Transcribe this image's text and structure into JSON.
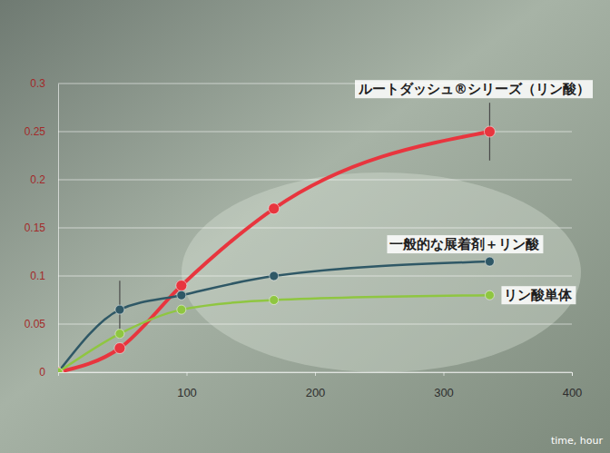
{
  "chart_data": {
    "type": "line",
    "x_label": "time, hour",
    "x": [
      0,
      48,
      96,
      168,
      336
    ],
    "xlim": [
      0,
      400
    ],
    "xticks": [
      100,
      200,
      300,
      400
    ],
    "ylim": [
      0,
      0.3
    ],
    "yticks": [
      0,
      0.05,
      0.1,
      0.15,
      0.2,
      0.25,
      0.3
    ],
    "grid": true,
    "marker": "circle",
    "series": [
      {
        "name": "ルートダッシュ®シリーズ（リン酸）",
        "color": "#e8353e",
        "values": [
          0,
          0.025,
          0.09,
          0.17,
          0.25
        ],
        "errors": [
          null,
          null,
          null,
          null,
          0.03
        ]
      },
      {
        "name": "一般的な展着剤＋リン酸",
        "color": "#2f5866",
        "values": [
          0,
          0.065,
          0.08,
          0.1,
          0.115
        ],
        "errors": [
          null,
          0.03,
          null,
          null,
          null
        ]
      },
      {
        "name": "リン酸単体",
        "color": "#8fc641",
        "values": [
          0,
          0.04,
          0.065,
          0.075,
          0.08
        ],
        "errors": [
          null,
          null,
          null,
          null,
          null
        ]
      }
    ]
  }
}
